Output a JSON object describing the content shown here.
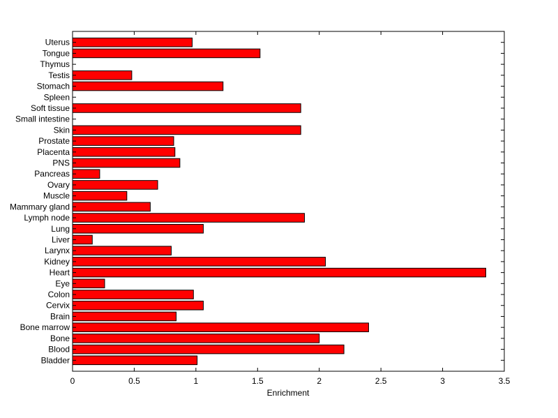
{
  "chart_data": {
    "type": "bar",
    "orientation": "horizontal",
    "title": "",
    "xlabel": "Enrichment",
    "ylabel": "",
    "xlim": [
      0,
      3.5
    ],
    "xticks": [
      0,
      0.5,
      1,
      1.5,
      2,
      2.5,
      3,
      3.5
    ],
    "xtick_labels": [
      "0",
      "0.5",
      "1",
      "1.5",
      "2",
      "2.5",
      "3",
      "3.5"
    ],
    "grid": false,
    "legend": "none",
    "bar_color": "#ff0000",
    "categories": [
      "Bladder",
      "Blood",
      "Bone",
      "Bone marrow",
      "Brain",
      "Cervix",
      "Colon",
      "Eye",
      "Heart",
      "Kidney",
      "Larynx",
      "Liver",
      "Lung",
      "Lymph node",
      "Mammary gland",
      "Muscle",
      "Ovary",
      "Pancreas",
      "PNS",
      "Placenta",
      "Prostate",
      "Skin",
      "Small intestine",
      "Soft tissue",
      "Spleen",
      "Stomach",
      "Testis",
      "Thymus",
      "Tongue",
      "Uterus"
    ],
    "values": [
      1.01,
      2.2,
      2.0,
      2.4,
      0.84,
      1.06,
      0.98,
      0.26,
      3.35,
      2.05,
      0.8,
      0.16,
      1.06,
      1.88,
      0.63,
      0.44,
      0.69,
      0.22,
      0.87,
      0.83,
      0.82,
      1.85,
      0,
      1.85,
      0,
      1.22,
      0.48,
      0,
      1.52,
      0.97
    ]
  }
}
